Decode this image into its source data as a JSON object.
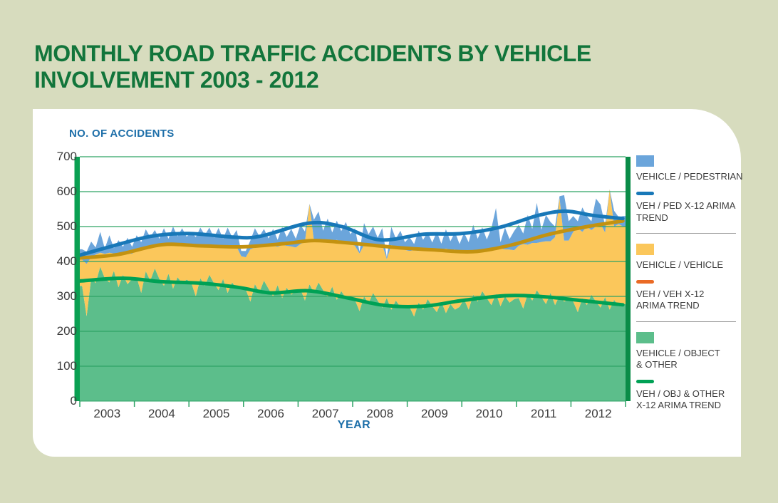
{
  "title": {
    "line1": "MONTHLY ROAD TRAFFIC ACCIDENTS BY VEHICLE",
    "line2": "INVOLVEMENT 2003 - 2012"
  },
  "axes": {
    "y_label": "NO. OF ACCIDENTS",
    "x_label": "YEAR",
    "y_ticks": [
      700,
      600,
      500,
      400,
      300,
      200,
      100,
      0
    ],
    "x_ticks": [
      "2003",
      "2004",
      "2005",
      "2006",
      "2007",
      "2008",
      "2009",
      "2010",
      "2011",
      "2012"
    ]
  },
  "legend": {
    "items": [
      {
        "type": "area",
        "color": "blue_area",
        "label": "VEHICLE / PEDESTRIAN"
      },
      {
        "type": "line",
        "color": "blue_trend",
        "label": "VEH / PED X-12 ARIMA\nTREND"
      },
      {
        "type": "area",
        "color": "yellow_area",
        "label": "VEHICLE / VEHICLE"
      },
      {
        "type": "line",
        "color": "legend_orange",
        "label": "VEH / VEH X-12\nARIMA TREND"
      },
      {
        "type": "area",
        "color": "green_area",
        "label": "VEHICLE / OBJECT\n& OTHER"
      },
      {
        "type": "line",
        "color": "green_trend",
        "label": "VEH / OBJ  & OTHER\nX-12 ARIMA TREND"
      }
    ]
  },
  "colors": {
    "background": "#D7DCBE",
    "panel": "#FFFFFF",
    "title_green": "#12753B",
    "axis_blue": "#1E6FA9",
    "text_dark": "#3C3C3C",
    "grid_green": "#2EA365",
    "axis_bar_green": "#0AA052",
    "axis_bar_green_dark": "#0A8C48",
    "blue_area": "#6BA5DB",
    "yellow_area": "#FBC75B",
    "green_area": "#5CBE8B",
    "blue_trend": "#1878B8",
    "gold_trend": "#C39210",
    "green_trend": "#00A155",
    "legend_orange": "#EA6A25",
    "separator_gray": "#9B9B9B"
  },
  "chart_data": {
    "type": "area",
    "stacked": true,
    "title": "MONTHLY ROAD TRAFFIC ACCIDENTS BY VEHICLE INVOLVEMENT 2003 - 2012",
    "xlabel": "YEAR",
    "ylabel": "NO. OF ACCIDENTS",
    "x_start_year": 2003,
    "x_end_year": 2013,
    "points_per_year": 12,
    "ylim": [
      0,
      700
    ],
    "grid": true,
    "legend_position": "right",
    "series": [
      {
        "name": "VEHICLE / OBJECT & OTHER",
        "color_key": "green_area",
        "values": [
          330,
          243,
          352,
          338,
          385,
          352,
          340,
          373,
          326,
          362,
          335,
          350,
          355,
          310,
          372,
          345,
          380,
          350,
          330,
          365,
          322,
          355,
          338,
          348,
          340,
          300,
          352,
          330,
          362,
          338,
          318,
          350,
          310,
          340,
          322,
          330,
          320,
          285,
          335,
          312,
          345,
          322,
          300,
          332,
          295,
          325,
          305,
          315,
          322,
          288,
          335,
          310,
          340,
          318,
          298,
          328,
          290,
          315,
          295,
          300,
          290,
          258,
          300,
          280,
          310,
          288,
          268,
          295,
          262,
          288,
          270,
          275,
          270,
          242,
          282,
          262,
          292,
          272,
          255,
          285,
          252,
          278,
          262,
          270,
          292,
          262,
          305,
          285,
          315,
          295,
          275,
          308,
          272,
          300,
          282,
          292,
          295,
          265,
          308,
          288,
          318,
          298,
          278,
          310,
          275,
          302,
          285,
          292,
          285,
          255,
          295,
          275,
          305,
          285,
          268,
          298,
          262,
          290,
          272,
          278
        ]
      },
      {
        "name": "VEHICLE / VEHICLE",
        "color_key": "yellow_area",
        "values": [
          75,
          150,
          60,
          82,
          40,
          70,
          85,
          50,
          95,
          65,
          88,
          72,
          80,
          125,
          65,
          100,
          62,
          95,
          120,
          82,
          128,
          95,
          112,
          98,
          105,
          148,
          90,
          118,
          85,
          108,
          130,
          95,
          135,
          105,
          120,
          85,
          92,
          150,
          105,
          132,
          98,
          122,
          145,
          110,
          152,
          120,
          138,
          125,
          128,
          168,
          230,
          148,
          115,
          140,
          165,
          130,
          172,
          142,
          160,
          150,
          155,
          165,
          148,
          170,
          135,
          158,
          180,
          112,
          185,
          152,
          170,
          158,
          160,
          190,
          148,
          172,
          140,
          162,
          182,
          148,
          185,
          155,
          172,
          158,
          135,
          168,
          125,
          148,
          115,
          140,
          160,
          125,
          165,
          135,
          152,
          140,
          150,
          185,
          140,
          165,
          135,
          158,
          180,
          148,
          195,
          280,
          175,
          168,
          200,
          240,
          190,
          225,
          185,
          215,
          240,
          185,
          345,
          210,
          235,
          222
        ]
      },
      {
        "name": "VEHICLE / PEDESTRIAN",
        "color_key": "blue_area",
        "values": [
          30,
          35,
          45,
          20,
          60,
          15,
          50,
          15,
          40,
          15,
          45,
          20,
          40,
          20,
          55,
          25,
          48,
          20,
          45,
          18,
          50,
          22,
          45,
          25,
          38,
          22,
          55,
          28,
          50,
          22,
          48,
          20,
          52,
          25,
          48,
          15,
          18,
          25,
          55,
          28,
          50,
          22,
          48,
          20,
          52,
          25,
          50,
          25,
          55,
          30,
          0,
          62,
          88,
          30,
          60,
          25,
          55,
          30,
          58,
          28,
          50,
          5,
          62,
          28,
          55,
          22,
          48,
          5,
          52,
          25,
          48,
          22,
          40,
          18,
          58,
          28,
          52,
          20,
          48,
          18,
          55,
          25,
          50,
          22,
          55,
          25,
          75,
          32,
          68,
          28,
          60,
          120,
          18,
          62,
          30,
          55,
          60,
          30,
          85,
          40,
          115,
          35,
          75,
          55,
          30,
          5,
          130,
          55,
          45,
          20,
          70,
          30,
          25,
          80,
          55,
          20,
          0,
          45,
          20,
          30
        ]
      }
    ],
    "trends": [
      {
        "name": "VEH / OBJ & OTHER X-12 ARIMA TREND",
        "color_key": "green_trend",
        "x": [
          2003.0,
          2003.8,
          2004.5,
          2005.2,
          2005.9,
          2006.5,
          2007.2,
          2007.9,
          2008.6,
          2009.3,
          2010.0,
          2010.8,
          2011.5,
          2012.2,
          2012.95
        ],
        "values": [
          344,
          352,
          342,
          338,
          326,
          310,
          316,
          296,
          274,
          272,
          288,
          302,
          299,
          288,
          276
        ]
      },
      {
        "name": "VEH / VEH X-12 ARIMA TREND",
        "color_key": "gold_trend",
        "x": [
          2003.0,
          2003.7,
          2004.5,
          2005.2,
          2006.0,
          2006.8,
          2007.3,
          2008.0,
          2008.8,
          2009.5,
          2010.2,
          2010.9,
          2011.6,
          2012.3,
          2012.95
        ],
        "values": [
          410,
          420,
          448,
          445,
          442,
          452,
          460,
          452,
          440,
          433,
          428,
          447,
          478,
          500,
          516
        ]
      },
      {
        "name": "VEH / PED X-12 ARIMA TREND",
        "color_key": "blue_trend",
        "x": [
          2003.0,
          2003.5,
          2004.3,
          2005.0,
          2005.8,
          2006.3,
          2007.2,
          2007.8,
          2008.5,
          2009.3,
          2010.0,
          2010.7,
          2011.4,
          2011.9,
          2012.4,
          2012.95
        ],
        "values": [
          418,
          440,
          472,
          480,
          470,
          472,
          510,
          500,
          462,
          478,
          480,
          498,
          532,
          544,
          532,
          523
        ]
      }
    ]
  }
}
